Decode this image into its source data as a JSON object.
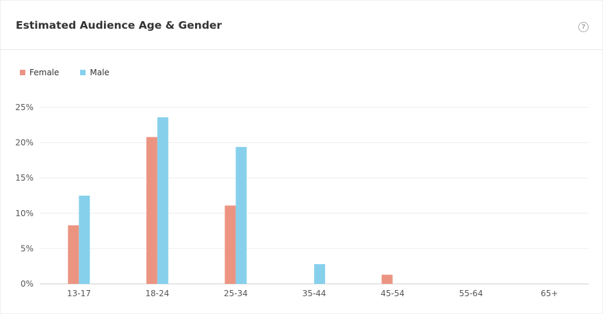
{
  "header": {
    "title": "Estimated Audience Age & Gender",
    "help_icon": "question-circle-icon"
  },
  "colors": {
    "female": "#ec9482",
    "male": "#86d0ec",
    "grid": "#eeeeee",
    "axis": "#cccccc"
  },
  "chart_data": {
    "type": "bar",
    "title": "Estimated Audience Age & Gender",
    "categories": [
      "13-17",
      "18-24",
      "25-34",
      "35-44",
      "45-54",
      "55-64",
      "65+"
    ],
    "series": [
      {
        "name": "Female",
        "values": [
          8.3,
          20.8,
          11.1,
          0,
          1.3,
          0,
          0
        ]
      },
      {
        "name": "Male",
        "values": [
          12.5,
          23.6,
          19.4,
          2.8,
          0,
          0,
          0
        ]
      }
    ],
    "y_ticks": [
      "0%",
      "5%",
      "10%",
      "15%",
      "20%",
      "25%"
    ],
    "ylim": [
      0,
      25
    ],
    "grid": true,
    "legend": "top-left"
  }
}
